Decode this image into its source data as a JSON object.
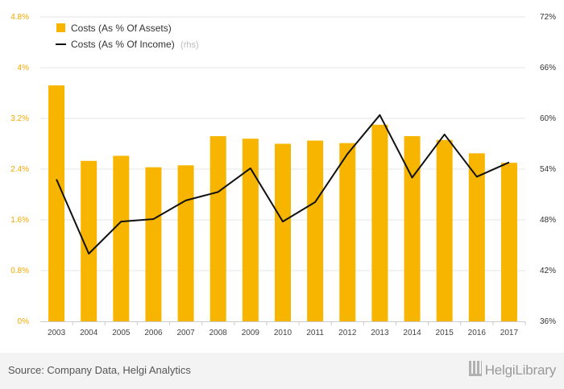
{
  "chart_data": {
    "type": "bar",
    "categories": [
      "2003",
      "2004",
      "2005",
      "2006",
      "2007",
      "2008",
      "2009",
      "2010",
      "2011",
      "2012",
      "2013",
      "2014",
      "2015",
      "2016",
      "2017"
    ],
    "series": [
      {
        "name": "Costs (As % Of Assets)",
        "type": "bar",
        "axis": "left",
        "color": "#f7b500",
        "values": [
          3.72,
          2.53,
          2.61,
          2.43,
          2.46,
          2.92,
          2.88,
          2.8,
          2.85,
          2.81,
          3.1,
          2.92,
          2.86,
          2.65,
          2.5
        ]
      },
      {
        "name": "Costs (As % Of Income)",
        "note": "(rhs)",
        "type": "line",
        "axis": "right",
        "color": "#111111",
        "values": [
          52.8,
          44.0,
          47.8,
          48.1,
          50.3,
          51.3,
          54.1,
          47.8,
          50.1,
          55.8,
          60.4,
          53.0,
          58.1,
          53.1,
          54.8
        ]
      }
    ],
    "yaxis_left": {
      "min": 0,
      "max": 4.8,
      "ticks": [
        "0%",
        "0.8%",
        "1.6%",
        "2.4%",
        "3.2%",
        "4%",
        "4.8%"
      ]
    },
    "yaxis_right": {
      "min": 36,
      "max": 72,
      "ticks": [
        "36%",
        "42%",
        "48%",
        "54%",
        "60%",
        "66%",
        "72%"
      ]
    },
    "grid": true,
    "legend_position": "top-left"
  },
  "footer": {
    "source": "Source: Company Data, Helgi Analytics",
    "brand": "HelgiLibrary"
  }
}
